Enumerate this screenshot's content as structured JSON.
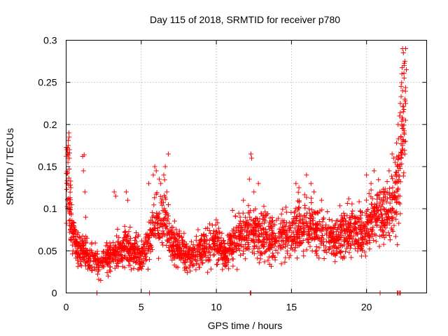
{
  "chart_data": {
    "type": "scatter",
    "title": "Day 115 of 2018, SRMTID for receiver p780",
    "xlabel": "GPS time / hours",
    "ylabel": "SRMTID / TECUs",
    "xlim": [
      0,
      24
    ],
    "ylim": [
      0,
      0.3
    ],
    "xticks": [
      0,
      5,
      10,
      15,
      20
    ],
    "xtick_labels": [
      "0",
      "5",
      "10",
      "15",
      "20"
    ],
    "yticks": [
      0,
      0.05,
      0.1,
      0.15,
      0.2,
      0.25,
      0.3
    ],
    "ytick_labels": [
      "0",
      "0.05",
      "0.1",
      "0.15",
      "0.2",
      "0.25",
      "0.3"
    ],
    "grid": true,
    "marker": "plus",
    "series_color": "#ff0000",
    "trend": {
      "x": [
        0.0,
        0.15,
        0.4,
        0.8,
        1.5,
        2.2,
        3.0,
        4.0,
        5.0,
        5.5,
        6.0,
        6.6,
        7.0,
        8.0,
        9.0,
        10.0,
        10.6,
        11.0,
        12.0,
        13.0,
        14.0,
        15.0,
        16.0,
        17.0,
        18.0,
        19.0,
        19.8,
        20.3,
        21.0,
        21.5,
        22.0,
        22.3,
        22.6
      ],
      "y": [
        0.125,
        0.145,
        0.07,
        0.05,
        0.045,
        0.035,
        0.045,
        0.055,
        0.045,
        0.06,
        0.085,
        0.09,
        0.06,
        0.045,
        0.05,
        0.06,
        0.045,
        0.06,
        0.075,
        0.07,
        0.065,
        0.075,
        0.08,
        0.075,
        0.065,
        0.075,
        0.07,
        0.09,
        0.095,
        0.1,
        0.11,
        0.175,
        0.235
      ]
    },
    "points": [
      [
        0.05,
        0.17
      ],
      [
        0.08,
        0.165
      ],
      [
        0.1,
        0.172
      ],
      [
        0.12,
        0.16
      ],
      [
        0.15,
        0.175
      ],
      [
        0.18,
        0.19
      ],
      [
        0.2,
        0.185
      ],
      [
        0.22,
        0.17
      ],
      [
        0.1,
        0.1
      ],
      [
        0.05,
        0.13
      ],
      [
        0.12,
        0.155
      ],
      [
        1.1,
        0.162
      ],
      [
        1.2,
        0.164
      ],
      [
        1.15,
        0.145
      ],
      [
        1.25,
        0.12
      ],
      [
        1.3,
        0.09
      ],
      [
        3.2,
        0.12
      ],
      [
        3.3,
        0.115
      ],
      [
        4.0,
        0.12
      ],
      [
        4.1,
        0.11
      ],
      [
        2.3,
        0.015
      ],
      [
        2.8,
        0.02
      ],
      [
        5.5,
        0.13
      ],
      [
        5.8,
        0.14
      ],
      [
        5.9,
        0.15
      ],
      [
        6.0,
        0.145
      ],
      [
        6.2,
        0.135
      ],
      [
        6.3,
        0.13
      ],
      [
        6.5,
        0.14
      ],
      [
        6.6,
        0.15
      ],
      [
        6.8,
        0.165
      ],
      [
        6.7,
        0.12
      ],
      [
        12.3,
        0.165
      ],
      [
        12.35,
        0.16
      ],
      [
        12.2,
        0.135
      ],
      [
        12.5,
        0.12
      ],
      [
        12.8,
        0.13
      ],
      [
        11.8,
        0.11
      ],
      [
        15.3,
        0.13
      ],
      [
        15.5,
        0.125
      ],
      [
        16.0,
        0.14
      ],
      [
        16.3,
        0.13
      ],
      [
        16.5,
        0.12
      ],
      [
        17.0,
        0.11
      ],
      [
        20.0,
        0.14
      ],
      [
        20.5,
        0.145
      ],
      [
        20.3,
        0.13
      ],
      [
        21.2,
        0.12
      ],
      [
        21.5,
        0.145
      ],
      [
        21.7,
        0.165
      ],
      [
        21.8,
        0.16
      ],
      [
        21.9,
        0.155
      ],
      [
        22.0,
        0.178
      ],
      [
        22.1,
        0.2
      ],
      [
        22.2,
        0.21
      ],
      [
        22.25,
        0.225
      ],
      [
        22.3,
        0.245
      ],
      [
        22.35,
        0.26
      ],
      [
        22.4,
        0.29
      ],
      [
        22.45,
        0.285
      ],
      [
        22.5,
        0.27
      ],
      [
        22.55,
        0.275
      ],
      [
        22.6,
        0.29
      ],
      [
        22.65,
        0.265
      ],
      [
        22.5,
        0.255
      ],
      [
        22.4,
        0.24
      ],
      [
        22.55,
        0.23
      ],
      [
        22.6,
        0.225
      ],
      [
        22.45,
        0.215
      ],
      [
        22.35,
        0.2
      ],
      [
        22.5,
        0.19
      ],
      [
        22.6,
        0.18
      ],
      [
        22.4,
        0.175
      ],
      [
        22.55,
        0.165
      ],
      [
        22.3,
        0.185
      ],
      [
        22.45,
        0.195
      ],
      [
        22.6,
        0.205
      ],
      [
        22.3,
        0.16
      ],
      [
        22.2,
        0.15
      ],
      [
        22.1,
        0.14
      ],
      [
        2.05,
        0.0
      ],
      [
        5.55,
        0.0
      ],
      [
        12.25,
        0.0
      ],
      [
        12.3,
        0.0
      ],
      [
        20.9,
        0.0
      ],
      [
        22.05,
        0.0
      ],
      [
        22.1,
        0.0
      ],
      [
        22.2,
        0.0
      ],
      [
        22.25,
        0.0
      ]
    ],
    "point_count_estimate": 2400
  }
}
